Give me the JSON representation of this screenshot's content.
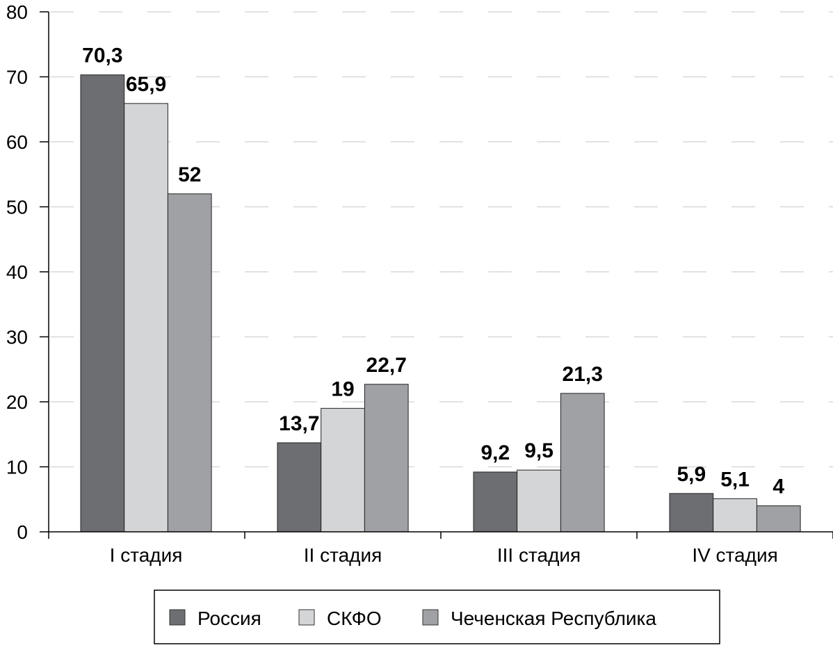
{
  "chart_data": {
    "type": "bar",
    "title": "",
    "xlabel": "",
    "ylabel": "",
    "ylim": [
      0,
      80
    ],
    "yticks": [
      0,
      10,
      20,
      30,
      40,
      50,
      60,
      70,
      80
    ],
    "grid": true,
    "legend_position": "bottom",
    "categories": [
      "I стадия",
      "II  стадия",
      "III  стадия",
      "IV  стадия"
    ],
    "series": [
      {
        "name": "Россия",
        "color": "#6d6e72",
        "values": [
          70.3,
          13.7,
          9.2,
          5.9
        ],
        "labels": [
          "70,3",
          "13,7",
          "9,2",
          "5,9"
        ]
      },
      {
        "name": "СКФО",
        "color": "#d4d5d7",
        "values": [
          65.9,
          19,
          9.5,
          5.1
        ],
        "labels": [
          "65,9",
          "19",
          "9,5",
          "5,1"
        ]
      },
      {
        "name": "Чеченская Республика",
        "color": "#a0a1a5",
        "values": [
          52,
          22.7,
          21.3,
          4
        ],
        "labels": [
          "52",
          "22,7",
          "21,3",
          "4"
        ]
      }
    ]
  }
}
